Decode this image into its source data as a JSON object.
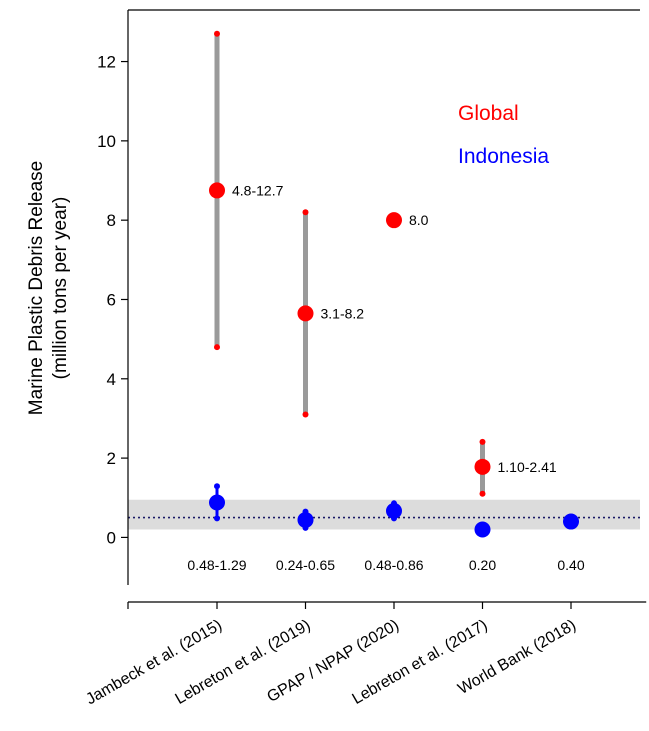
{
  "chart_data": {
    "type": "scatter",
    "ylabel_line1": "Marine Plastic Debris Release",
    "ylabel_line2": "(million tons per year)",
    "categories": [
      "Jambeck et al. (2015)",
      "Lebreton et al. (2019)",
      "GPAP / NPAP (2020)",
      "Lebreton et al. (2017)",
      "World Bank (2018)"
    ],
    "ylim": [
      -1.2,
      13.3
    ],
    "yticks": [
      0,
      2,
      4,
      6,
      8,
      10,
      12
    ],
    "legend": [
      {
        "name": "Global",
        "color": "#ff0000"
      },
      {
        "name": "Indonesia",
        "color": "#0000ff"
      }
    ],
    "reference_band": [
      0.2,
      0.95
    ],
    "reference_line": 0.5,
    "series": [
      {
        "name": "Global",
        "color": "#ff0000",
        "points": [
          {
            "category_index": 0,
            "value": 8.75,
            "low": 4.8,
            "high": 12.7,
            "label": "4.8-12.7"
          },
          {
            "category_index": 1,
            "value": 5.65,
            "low": 3.1,
            "high": 8.2,
            "label": "3.1-8.2"
          },
          {
            "category_index": 2,
            "value": 8.0,
            "low": null,
            "high": null,
            "label": "8.0"
          },
          {
            "category_index": 3,
            "value": 1.78,
            "low": 1.1,
            "high": 2.41,
            "label": "1.10-2.41"
          }
        ]
      },
      {
        "name": "Indonesia",
        "color": "#0000ff",
        "points": [
          {
            "category_index": 0,
            "value": 0.88,
            "low": 0.48,
            "high": 1.29,
            "label": "0.48-1.29"
          },
          {
            "category_index": 1,
            "value": 0.44,
            "low": 0.24,
            "high": 0.65,
            "label": "0.24-0.65"
          },
          {
            "category_index": 2,
            "value": 0.67,
            "low": 0.48,
            "high": 0.86,
            "label": "0.48-0.86"
          },
          {
            "category_index": 3,
            "value": 0.2,
            "low": null,
            "high": null,
            "label": "0.20"
          },
          {
            "category_index": 4,
            "value": 0.4,
            "low": null,
            "high": null,
            "label": "0.40"
          }
        ]
      }
    ]
  }
}
